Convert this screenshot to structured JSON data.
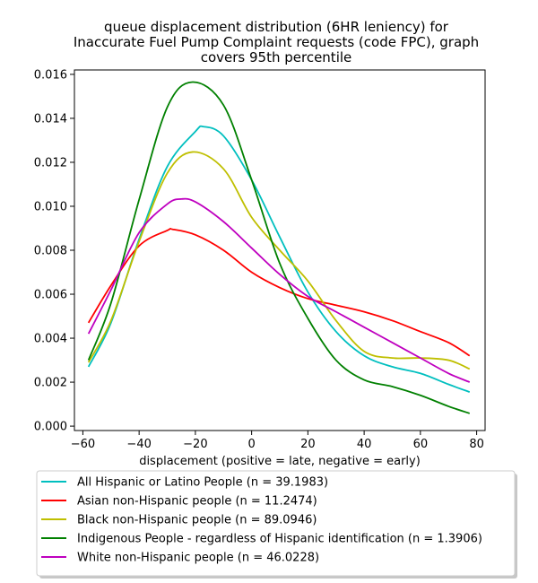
{
  "chart_data": {
    "type": "line",
    "title_lines": [
      "queue displacement distribution (6HR leniency) for",
      "Inaccurate Fuel Pump Complaint  requests (code FPC), graph",
      "covers 95th percentile"
    ],
    "xlabel": "displacement (positive = late, negative = early)",
    "ylabel": "",
    "xlim": [
      -63,
      83
    ],
    "ylim": [
      -0.0002,
      0.0162
    ],
    "xticks": [
      -60,
      -40,
      -20,
      0,
      20,
      40,
      60,
      80
    ],
    "xtick_labels": [
      "−60",
      "−40",
      "−20",
      "0",
      "20",
      "40",
      "60",
      "80"
    ],
    "yticks": [
      0,
      0.002,
      0.004,
      0.006,
      0.008,
      0.01,
      0.012,
      0.014,
      0.016
    ],
    "ytick_labels": [
      "0.000",
      "0.002",
      "0.004",
      "0.006",
      "0.008",
      "0.010",
      "0.012",
      "0.014",
      "0.016"
    ],
    "grid": false,
    "legend_position": "below",
    "series": [
      {
        "name": "All Hispanic or Latino People (n = 39.1983)",
        "color": "#00bfbf",
        "x": [
          -58,
          -50,
          -40,
          -30,
          -20,
          -17,
          -10,
          0,
          10,
          20,
          30,
          40,
          50,
          60,
          70,
          77.5
        ],
        "y": [
          0.0027,
          0.0047,
          0.0085,
          0.0118,
          0.0134,
          0.01362,
          0.0132,
          0.0112,
          0.0086,
          0.0061,
          0.0043,
          0.0032,
          0.0027,
          0.0024,
          0.0019,
          0.00155
        ]
      },
      {
        "name": "Asian non-Hispanic people (n = 11.2474)",
        "color": "#ff0000",
        "x": [
          -58,
          -50,
          -40,
          -30,
          -28,
          -20,
          -10,
          0,
          10,
          20,
          30,
          40,
          50,
          60,
          70,
          77.5
        ],
        "y": [
          0.0047,
          0.0064,
          0.0082,
          0.0089,
          0.00895,
          0.0087,
          0.008,
          0.007,
          0.0063,
          0.0058,
          0.0055,
          0.0052,
          0.0048,
          0.0043,
          0.0038,
          0.0032
        ]
      },
      {
        "name": "Black non-Hispanic people (n = 89.0946)",
        "color": "#bfbf00",
        "x": [
          -58,
          -50,
          -40,
          -30,
          -21,
          -10,
          0,
          10,
          20,
          30,
          40,
          50,
          60,
          70,
          77.5
        ],
        "y": [
          0.0029,
          0.0048,
          0.0084,
          0.0115,
          0.01247,
          0.0117,
          0.0095,
          0.008,
          0.0066,
          0.0048,
          0.0034,
          0.0031,
          0.0031,
          0.003,
          0.0026
        ]
      },
      {
        "name": "Indigenous People - regardless of Hispanic identification (n = 1.3906)",
        "color": "#008000",
        "x": [
          -58,
          -50,
          -40,
          -30,
          -21,
          -10,
          0,
          10,
          20,
          30,
          40,
          50,
          60,
          70,
          77.5
        ],
        "y": [
          0.003,
          0.0056,
          0.0103,
          0.0145,
          0.01565,
          0.0146,
          0.0112,
          0.0074,
          0.0049,
          0.003,
          0.0021,
          0.0018,
          0.0014,
          0.0009,
          0.00058
        ]
      },
      {
        "name": "White non-Hispanic people (n = 46.0228)",
        "color": "#bf00bf",
        "x": [
          -58,
          -50,
          -40,
          -30,
          -25,
          -20,
          -10,
          0,
          10,
          20,
          30,
          40,
          50,
          60,
          70,
          77.5
        ],
        "y": [
          0.0042,
          0.0062,
          0.0088,
          0.0101,
          0.01033,
          0.0102,
          0.0093,
          0.0081,
          0.0069,
          0.0059,
          0.0052,
          0.0045,
          0.0038,
          0.0031,
          0.0024,
          0.002
        ]
      }
    ]
  }
}
